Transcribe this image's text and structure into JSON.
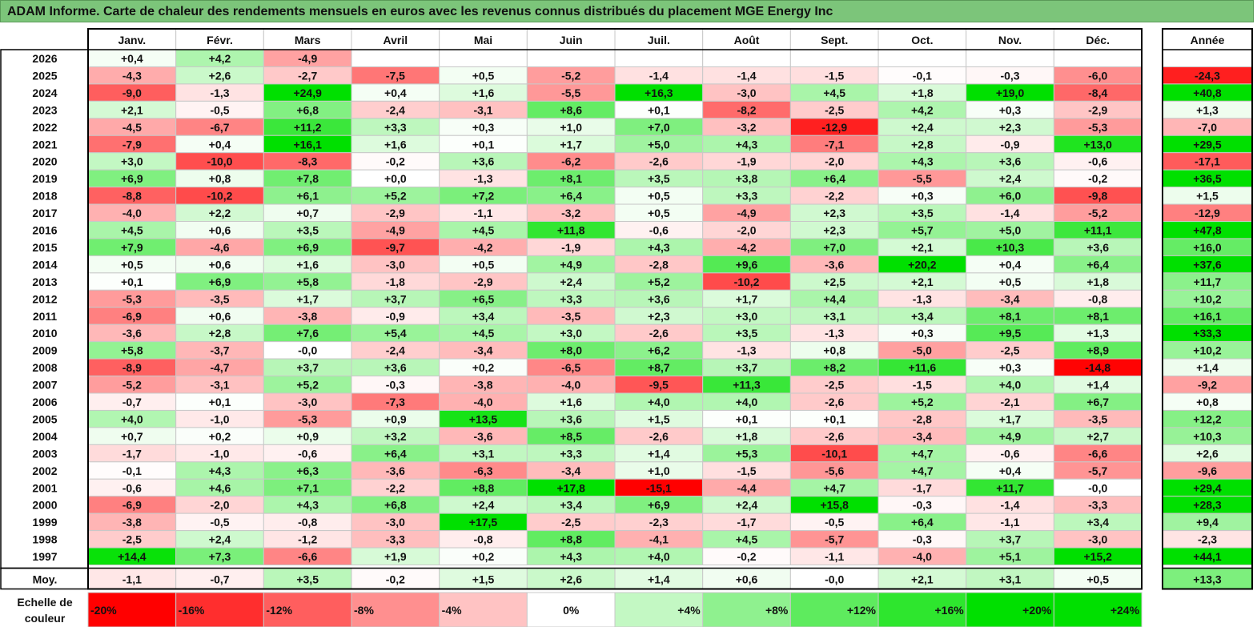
{
  "title": "ADAM Informe. Carte de chaleur des rendements mensuels en euros avec les revenus connus distribués du placement MGE Energy Inc",
  "chart_data": {
    "type": "heatmap",
    "columns": [
      "Janv.",
      "Févr.",
      "Mars",
      "Avril",
      "Mai",
      "Juin",
      "Juil.",
      "Août",
      "Sept.",
      "Oct.",
      "Nov.",
      "Déc."
    ],
    "year_header": "Année",
    "rows": [
      {
        "year": "2026",
        "months": [
          "+0,4",
          "+4,2",
          "-4,9",
          "",
          "",
          "",
          "",
          "",
          "",
          "",
          "",
          ""
        ],
        "annual": ""
      },
      {
        "year": "2025",
        "months": [
          "-4,3",
          "+2,6",
          "-2,7",
          "-7,5",
          "+0,5",
          "-5,2",
          "-1,4",
          "-1,4",
          "-1,5",
          "-0,1",
          "-0,3",
          "-6,0"
        ],
        "annual": "-24,3"
      },
      {
        "year": "2024",
        "months": [
          "-9,0",
          "-1,3",
          "+24,9",
          "+0,4",
          "+1,6",
          "-5,5",
          "+16,3",
          "-3,0",
          "+4,5",
          "+1,8",
          "+19,0",
          "-8,4"
        ],
        "annual": "+40,8"
      },
      {
        "year": "2023",
        "months": [
          "+2,1",
          "-0,5",
          "+6,8",
          "-2,4",
          "-3,1",
          "+8,6",
          "+0,1",
          "-8,2",
          "-2,5",
          "+4,2",
          "+0,3",
          "-2,9"
        ],
        "annual": "+1,3"
      },
      {
        "year": "2022",
        "months": [
          "-4,5",
          "-6,7",
          "+11,2",
          "+3,3",
          "+0,3",
          "+1,0",
          "+7,0",
          "-3,2",
          "-12,9",
          "+2,4",
          "+2,3",
          "-5,3"
        ],
        "annual": "-7,0"
      },
      {
        "year": "2021",
        "months": [
          "-7,9",
          "+0,4",
          "+16,1",
          "+1,6",
          "+0,1",
          "+1,7",
          "+5,0",
          "+4,3",
          "-7,1",
          "+2,8",
          "-0,9",
          "+13,0"
        ],
        "annual": "+29,5"
      },
      {
        "year": "2020",
        "months": [
          "+3,0",
          "-10,0",
          "-8,3",
          "-0,2",
          "+3,6",
          "-6,2",
          "-2,6",
          "-1,9",
          "-2,0",
          "+4,3",
          "+3,6",
          "-0,6"
        ],
        "annual": "-17,1"
      },
      {
        "year": "2019",
        "months": [
          "+6,9",
          "+0,8",
          "+7,8",
          "+0,0",
          "-1,3",
          "+8,1",
          "+3,5",
          "+3,8",
          "+6,4",
          "-5,5",
          "+2,4",
          "-0,2"
        ],
        "annual": "+36,5"
      },
      {
        "year": "2018",
        "months": [
          "-8,8",
          "-10,2",
          "+6,1",
          "+5,2",
          "+7,2",
          "+6,4",
          "+0,5",
          "+3,3",
          "-2,2",
          "+0,3",
          "+6,0",
          "-9,8"
        ],
        "annual": "+1,5"
      },
      {
        "year": "2017",
        "months": [
          "-4,0",
          "+2,2",
          "+0,7",
          "-2,9",
          "-1,1",
          "-3,2",
          "+0,5",
          "-4,9",
          "+2,3",
          "+3,5",
          "-1,4",
          "-5,2"
        ],
        "annual": "-12,9"
      },
      {
        "year": "2016",
        "months": [
          "+4,5",
          "+0,6",
          "+3,5",
          "-4,9",
          "+4,5",
          "+11,8",
          "-0,6",
          "-2,0",
          "+2,3",
          "+5,7",
          "+5,0",
          "+11,1"
        ],
        "annual": "+47,8"
      },
      {
        "year": "2015",
        "months": [
          "+7,9",
          "-4,6",
          "+6,9",
          "-9,7",
          "-4,2",
          "-1,9",
          "+4,3",
          "-4,2",
          "+7,0",
          "+2,1",
          "+10,3",
          "+3,6"
        ],
        "annual": "+16,0"
      },
      {
        "year": "2014",
        "months": [
          "+0,5",
          "+0,6",
          "+1,6",
          "-3,0",
          "+0,5",
          "+4,9",
          "-2,8",
          "+9,6",
          "-3,6",
          "+20,2",
          "+0,4",
          "+6,4"
        ],
        "annual": "+37,6"
      },
      {
        "year": "2013",
        "months": [
          "+0,1",
          "+6,9",
          "+5,8",
          "-1,8",
          "-2,9",
          "+2,4",
          "+5,2",
          "-10,2",
          "+2,5",
          "+2,1",
          "+0,5",
          "+1,8"
        ],
        "annual": "+11,7"
      },
      {
        "year": "2012",
        "months": [
          "-5,3",
          "-3,5",
          "+1,7",
          "+3,7",
          "+6,5",
          "+3,3",
          "+3,6",
          "+1,7",
          "+4,4",
          "-1,3",
          "-3,4",
          "-0,8"
        ],
        "annual": "+10,2"
      },
      {
        "year": "2011",
        "months": [
          "-6,9",
          "+0,6",
          "-3,8",
          "-0,9",
          "+3,4",
          "-3,5",
          "+2,3",
          "+3,0",
          "+3,1",
          "+3,4",
          "+8,1",
          "+8,1"
        ],
        "annual": "+16,1"
      },
      {
        "year": "2010",
        "months": [
          "-3,6",
          "+2,8",
          "+7,6",
          "+5,4",
          "+4,5",
          "+3,0",
          "-2,6",
          "+3,5",
          "-1,3",
          "+0,3",
          "+9,5",
          "+1,3"
        ],
        "annual": "+33,3"
      },
      {
        "year": "2009",
        "months": [
          "+5,8",
          "-3,7",
          "-0,0",
          "-2,4",
          "-3,4",
          "+8,0",
          "+6,2",
          "-1,3",
          "+0,8",
          "-5,0",
          "-2,5",
          "+8,9"
        ],
        "annual": "+10,2"
      },
      {
        "year": "2008",
        "months": [
          "-8,9",
          "-4,7",
          "+3,7",
          "+3,6",
          "+0,2",
          "-6,5",
          "+8,7",
          "+3,7",
          "+8,2",
          "+11,6",
          "+0,3",
          "-14,8"
        ],
        "annual": "+1,4"
      },
      {
        "year": "2007",
        "months": [
          "-5,2",
          "-3,1",
          "+5,2",
          "-0,3",
          "-3,8",
          "-4,0",
          "-9,5",
          "+11,3",
          "-2,5",
          "-1,5",
          "+4,0",
          "+1,4"
        ],
        "annual": "-9,2"
      },
      {
        "year": "2006",
        "months": [
          "-0,7",
          "+0,1",
          "-3,0",
          "-7,3",
          "-4,0",
          "+1,6",
          "+4,0",
          "+4,0",
          "-2,6",
          "+5,2",
          "-2,1",
          "+6,7"
        ],
        "annual": "+0,8"
      },
      {
        "year": "2005",
        "months": [
          "+4,0",
          "-1,0",
          "-5,3",
          "+0,9",
          "+13,5",
          "+3,6",
          "+1,5",
          "+0,1",
          "+0,1",
          "-2,8",
          "+1,7",
          "-3,5"
        ],
        "annual": "+12,2"
      },
      {
        "year": "2004",
        "months": [
          "+0,7",
          "+0,2",
          "+0,9",
          "+3,2",
          "-3,6",
          "+8,5",
          "-2,6",
          "+1,8",
          "-2,6",
          "-3,4",
          "+4,9",
          "+2,7"
        ],
        "annual": "+10,3"
      },
      {
        "year": "2003",
        "months": [
          "-1,7",
          "-1,0",
          "-0,6",
          "+6,4",
          "+3,1",
          "+3,3",
          "+1,4",
          "+5,3",
          "-10,1",
          "+4,7",
          "-0,6",
          "-6,6"
        ],
        "annual": "+2,6"
      },
      {
        "year": "2002",
        "months": [
          "-0,1",
          "+4,3",
          "+6,3",
          "-3,6",
          "-6,3",
          "-3,4",
          "+1,0",
          "-1,5",
          "-5,6",
          "+4,7",
          "+0,4",
          "-5,7"
        ],
        "annual": "-9,6"
      },
      {
        "year": "2001",
        "months": [
          "-0,6",
          "+4,6",
          "+7,1",
          "-2,2",
          "+8,8",
          "+17,8",
          "-15,1",
          "-4,4",
          "+4,7",
          "-1,7",
          "+11,7",
          "-0,0"
        ],
        "annual": "+29,4"
      },
      {
        "year": "2000",
        "months": [
          "-6,9",
          "-2,0",
          "+4,3",
          "+6,8",
          "+2,4",
          "+3,4",
          "+6,9",
          "+2,4",
          "+15,8",
          "-0,3",
          "-1,4",
          "-3,3"
        ],
        "annual": "+28,3"
      },
      {
        "year": "1999",
        "months": [
          "-3,8",
          "-0,5",
          "-0,8",
          "-3,0",
          "+17,5",
          "-2,5",
          "-2,3",
          "-1,7",
          "-0,5",
          "+6,4",
          "-1,1",
          "+3,4"
        ],
        "annual": "+9,4"
      },
      {
        "year": "1998",
        "months": [
          "-2,5",
          "+2,4",
          "-1,2",
          "-3,3",
          "-0,8",
          "+8,8",
          "-4,1",
          "+4,5",
          "-5,7",
          "-0,3",
          "+3,7",
          "-3,0"
        ],
        "annual": "-2,3"
      },
      {
        "year": "1997",
        "months": [
          "+14,4",
          "+7,3",
          "-6,6",
          "+1,9",
          "+0,2",
          "+4,3",
          "+4,0",
          "-0,2",
          "-1,1",
          "-4,0",
          "+5,1",
          "+15,2"
        ],
        "annual": "+44,1"
      }
    ],
    "average": {
      "label": "Moy.",
      "months": [
        "-1,1",
        "-0,7",
        "+3,5",
        "-0,2",
        "+1,5",
        "+2,6",
        "+1,4",
        "+0,6",
        "-0,0",
        "+2,1",
        "+3,1",
        "+0,5"
      ],
      "annual": "+13,3"
    },
    "scale": {
      "label_line1": "Echelle de",
      "label_line2": "couleur",
      "stops": [
        "-20%",
        "-16%",
        "-12%",
        "-8%",
        "-4%",
        "0%",
        "+4%",
        "+8%",
        "+12%",
        "+16%",
        "+20%",
        "+24%"
      ],
      "stop_values": [
        -20,
        -16,
        -12,
        -8,
        -4,
        0,
        4,
        8,
        12,
        16,
        20,
        24
      ]
    },
    "colors": {
      "negative": "#ff0000",
      "positive": "#00e000",
      "neutral": "#ffffff",
      "border": "#c8c8c8",
      "frame": "#000000"
    }
  }
}
